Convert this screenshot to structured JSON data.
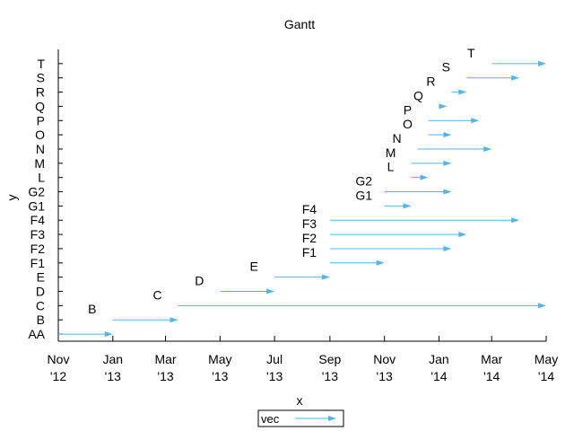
{
  "chart_data": {
    "type": "gantt",
    "title": "Gantt",
    "xlabel": "x",
    "ylabel": "y",
    "xlim": [
      "2012-11-01",
      "2014-05-01"
    ],
    "x_ticks": [
      {
        "date": "2012-11-01",
        "line1": "Nov",
        "line2": "'12"
      },
      {
        "date": "2013-01-01",
        "line1": "Jan",
        "line2": "'13"
      },
      {
        "date": "2013-03-01",
        "line1": "Mar",
        "line2": "'13"
      },
      {
        "date": "2013-05-01",
        "line1": "May",
        "line2": "'13"
      },
      {
        "date": "2013-07-01",
        "line1": "Jul",
        "line2": "'13"
      },
      {
        "date": "2013-09-01",
        "line1": "Sep",
        "line2": "'13"
      },
      {
        "date": "2013-11-01",
        "line1": "Nov",
        "line2": "'13"
      },
      {
        "date": "2014-01-01",
        "line1": "Jan",
        "line2": "'14"
      },
      {
        "date": "2014-03-01",
        "line1": "Mar",
        "line2": "'14"
      },
      {
        "date": "2014-05-01",
        "line1": "May",
        "line2": "'14"
      }
    ],
    "categories": [
      "AA",
      "B",
      "C",
      "D",
      "E",
      "F1",
      "F2",
      "F3",
      "F4",
      "G1",
      "G2",
      "L",
      "M",
      "N",
      "O",
      "P",
      "Q",
      "R",
      "S",
      "T"
    ],
    "tasks": [
      {
        "label": "AA",
        "start": "2012-11-01",
        "end": "2013-01-01",
        "show_label": false
      },
      {
        "label": "B",
        "start": "2013-01-01",
        "end": "2013-03-15",
        "show_label": true
      },
      {
        "label": "C",
        "start": "2013-03-15",
        "end": "2014-05-01",
        "show_label": true
      },
      {
        "label": "D",
        "start": "2013-05-01",
        "end": "2013-07-01",
        "show_label": true
      },
      {
        "label": "E",
        "start": "2013-07-01",
        "end": "2013-09-01",
        "show_label": true
      },
      {
        "label": "F1",
        "start": "2013-09-01",
        "end": "2013-11-01",
        "show_label": true
      },
      {
        "label": "F2",
        "start": "2013-09-01",
        "end": "2014-01-15",
        "show_label": true
      },
      {
        "label": "F3",
        "start": "2013-09-01",
        "end": "2014-02-01",
        "show_label": true
      },
      {
        "label": "F4",
        "start": "2013-09-01",
        "end": "2014-04-01",
        "show_label": true
      },
      {
        "label": "G1",
        "start": "2013-11-01",
        "end": "2013-12-01",
        "show_label": true
      },
      {
        "label": "G2",
        "start": "2013-11-01",
        "end": "2014-01-15",
        "show_label": true
      },
      {
        "label": "L",
        "start": "2013-12-01",
        "end": "2013-12-20",
        "show_label": true
      },
      {
        "label": "M",
        "start": "2013-12-01",
        "end": "2014-01-15",
        "show_label": true
      },
      {
        "label": "N",
        "start": "2013-12-08",
        "end": "2014-03-01",
        "show_label": true
      },
      {
        "label": "O",
        "start": "2013-12-20",
        "end": "2014-01-15",
        "show_label": true
      },
      {
        "label": "P",
        "start": "2013-12-20",
        "end": "2014-02-15",
        "show_label": true
      },
      {
        "label": "Q",
        "start": "2014-01-01",
        "end": "2014-01-10",
        "show_label": true
      },
      {
        "label": "R",
        "start": "2014-01-15",
        "end": "2014-02-01",
        "show_label": true
      },
      {
        "label": "S",
        "start": "2014-02-01",
        "end": "2014-04-01",
        "show_label": true
      },
      {
        "label": "T",
        "start": "2014-03-01",
        "end": "2014-05-01",
        "show_label": true
      }
    ],
    "grid": false,
    "legend": {
      "position": "bottom-center",
      "entries": [
        {
          "name": "vec",
          "color": "#56b4e9"
        }
      ]
    },
    "colors": {
      "bar": "#56b4e9",
      "axis": "#000000"
    }
  }
}
